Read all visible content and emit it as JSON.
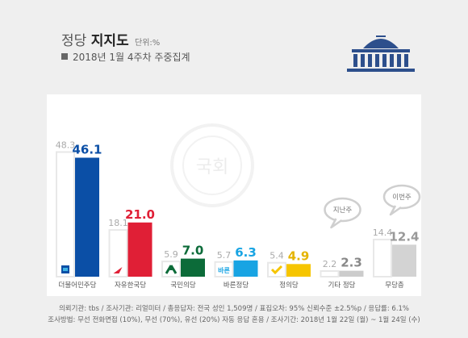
{
  "header": {
    "title_part1": "정당",
    "title_part2": "지지도",
    "unit": "단위:%",
    "subtitle": "2018년 1월 4주차 주중집계"
  },
  "colors": {
    "previous": "#e8e8e8",
    "previous_label": "#aaaaaa",
    "background": "#efefef",
    "logo": "#2d4f8c"
  },
  "chart_data": {
    "type": "bar",
    "categories": [
      "더불어민주당",
      "자유한국당",
      "국민의당",
      "바른정당",
      "정의당",
      "기타 정당",
      "무당층"
    ],
    "series": [
      {
        "values": [
          48.3,
          18.1,
          5.9,
          5.7,
          5.4,
          2.2,
          14.4
        ]
      },
      {
        "values": [
          46.1,
          21.0,
          7.0,
          6.3,
          4.9,
          2.3,
          12.4
        ]
      }
    ],
    "colors": [
      "#0b4fa6",
      "#e01f36",
      "#0c6b39",
      "#18a4e3",
      "#f6c500",
      "#cccccc",
      "#d3d3d3"
    ],
    "label_colors": [
      "#0b4fa6",
      "#e01f36",
      "#0c6b39",
      "#18a4e3",
      "#e5b400",
      "#888888",
      "#999999"
    ],
    "party_icons": [
      "democratic-party-icon",
      "liberty-korea-party-icon",
      "peoples-party-icon",
      "bareun-party-icon",
      "justice-party-icon",
      "",
      ""
    ],
    "bareun_icon_text": "바른",
    "annotations": [
      {
        "category": "기타 정당",
        "text": "지난주"
      },
      {
        "category": "무당층",
        "text": "이번주"
      }
    ],
    "ylim": [
      0,
      50
    ]
  },
  "watermark_text": "국회",
  "footnote": {
    "line1": "의뢰기관: tbs / 조사기관: 리얼미터 / 총응답자: 전국 성인 1,509명 / 표집오차: 95% 신뢰수준 ±2.5%p / 응답률: 6.1%",
    "line2": "조사방법: 무선 전화면접 (10%), 무선 (70%), 유선 (20%) 자동 응답 혼용 / 조사기간: 2018년 1월 22일 (월) ~ 1월 24일 (수)"
  }
}
